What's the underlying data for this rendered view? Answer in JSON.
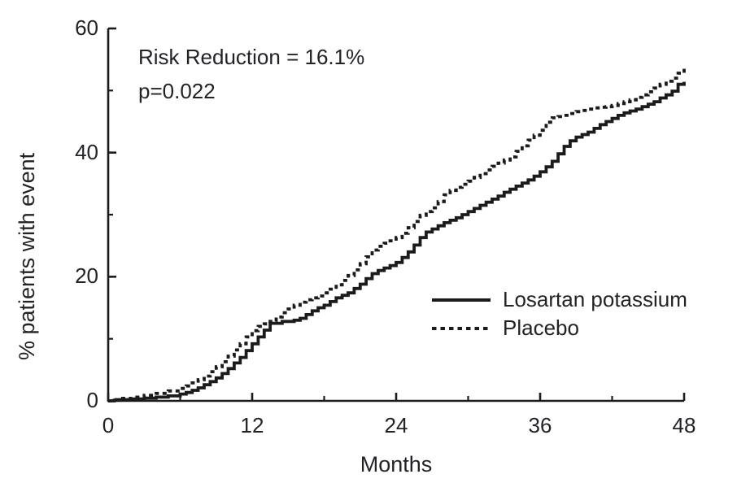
{
  "annotation": {
    "line1": "Risk Reduction = 16.1%",
    "line2": "p=0.022"
  },
  "axes": {
    "x": {
      "label": "Months",
      "major_ticks": [
        0,
        12,
        24,
        36,
        48
      ],
      "minor_ticks": [
        6,
        18,
        30,
        42
      ]
    },
    "y": {
      "label": "% patients with event",
      "major_ticks": [
        0,
        20,
        40,
        60
      ],
      "minor_ticks": [
        10,
        30,
        50
      ]
    }
  },
  "legend": {
    "items": [
      {
        "label": "Losartan potassium",
        "style": "solid"
      },
      {
        "label": "Placebo",
        "style": "dashed"
      }
    ]
  },
  "colors": {
    "line": "#1b1b1d",
    "text": "#232227",
    "background": "#ffffff"
  },
  "chart_data": {
    "type": "line",
    "subtype": "kaplan-meier-step",
    "title": "",
    "xlabel": "Months",
    "ylabel": "% patients with event",
    "xlim": [
      0,
      48
    ],
    "ylim": [
      0,
      60
    ],
    "grid": false,
    "legend_position": "lower-right-inside",
    "annotations": [
      "Risk Reduction = 16.1%",
      "p=0.022"
    ],
    "series": [
      {
        "name": "Losartan potassium",
        "style": "solid",
        "step": true,
        "points": [
          [
            0,
            0
          ],
          [
            0.5,
            0.1
          ],
          [
            1,
            0.2
          ],
          [
            2,
            0.3
          ],
          [
            3,
            0.45
          ],
          [
            4,
            0.6
          ],
          [
            5,
            0.8
          ],
          [
            6,
            1.1
          ],
          [
            6.5,
            1.35
          ],
          [
            7,
            1.7
          ],
          [
            7.5,
            2.1
          ],
          [
            8,
            2.6
          ],
          [
            8.5,
            3.1
          ],
          [
            9,
            3.7
          ],
          [
            9.5,
            4.4
          ],
          [
            10,
            5.2
          ],
          [
            10.5,
            6.1
          ],
          [
            11,
            7
          ],
          [
            11.5,
            8.1
          ],
          [
            12,
            9.2
          ],
          [
            12.5,
            10.3
          ],
          [
            13,
            11.4
          ],
          [
            13.5,
            12.5
          ],
          [
            14.5,
            12.8
          ],
          [
            15.5,
            13
          ],
          [
            16,
            13.3
          ],
          [
            16.5,
            13.9
          ],
          [
            17,
            14.5
          ],
          [
            17.5,
            15
          ],
          [
            18,
            15.4
          ],
          [
            18.5,
            16
          ],
          [
            19,
            16.6
          ],
          [
            19.5,
            17
          ],
          [
            20,
            17.4
          ],
          [
            20.5,
            18.1
          ],
          [
            21,
            18.8
          ],
          [
            21.5,
            19.7
          ],
          [
            22,
            20.5
          ],
          [
            22.5,
            21
          ],
          [
            23,
            21.4
          ],
          [
            23.5,
            21.8
          ],
          [
            24,
            22.3
          ],
          [
            24.5,
            23.1
          ],
          [
            25,
            24
          ],
          [
            25.5,
            25.1
          ],
          [
            26,
            26.3
          ],
          [
            26.5,
            27.2
          ],
          [
            27,
            27.7
          ],
          [
            27.5,
            28.2
          ],
          [
            28,
            28.7
          ],
          [
            28.5,
            29.1
          ],
          [
            29,
            29.5
          ],
          [
            29.5,
            30
          ],
          [
            30,
            30.5
          ],
          [
            30.5,
            31
          ],
          [
            31,
            31.5
          ],
          [
            31.5,
            32
          ],
          [
            32,
            32.5
          ],
          [
            32.5,
            33
          ],
          [
            33,
            33.6
          ],
          [
            33.5,
            34.1
          ],
          [
            34,
            34.6
          ],
          [
            34.5,
            35.1
          ],
          [
            35,
            35.6
          ],
          [
            35.5,
            36.2
          ],
          [
            36,
            36.9
          ],
          [
            36.5,
            37.7
          ],
          [
            37,
            38.6
          ],
          [
            37.5,
            39.8
          ],
          [
            38,
            41
          ],
          [
            38.5,
            41.9
          ],
          [
            39,
            42.5
          ],
          [
            39.5,
            42.9
          ],
          [
            40,
            43.3
          ],
          [
            40.5,
            43.9
          ],
          [
            41,
            44.5
          ],
          [
            41.5,
            45
          ],
          [
            42,
            45.5
          ],
          [
            42.5,
            46
          ],
          [
            43,
            46.4
          ],
          [
            43.5,
            46.7
          ],
          [
            44,
            47
          ],
          [
            44.5,
            47.4
          ],
          [
            45,
            47.8
          ],
          [
            45.5,
            48.2
          ],
          [
            46,
            48.8
          ],
          [
            46.5,
            49.3
          ],
          [
            47,
            49.9
          ],
          [
            47.5,
            51
          ],
          [
            48,
            51.4
          ]
        ]
      },
      {
        "name": "Placebo",
        "style": "dashed",
        "step": true,
        "points": [
          [
            0,
            0
          ],
          [
            0.5,
            0.2
          ],
          [
            1,
            0.4
          ],
          [
            2,
            0.6
          ],
          [
            3,
            0.9
          ],
          [
            4,
            1.2
          ],
          [
            5,
            1.6
          ],
          [
            6,
            2
          ],
          [
            6.5,
            2.4
          ],
          [
            7,
            2.9
          ],
          [
            7.5,
            3.4
          ],
          [
            8,
            4
          ],
          [
            8.5,
            4.7
          ],
          [
            9,
            5.5
          ],
          [
            9.5,
            6.3
          ],
          [
            10,
            7.2
          ],
          [
            10.5,
            8.2
          ],
          [
            11,
            9.2
          ],
          [
            11.5,
            10.3
          ],
          [
            12,
            11.3
          ],
          [
            12.5,
            12
          ],
          [
            13,
            12.4
          ],
          [
            13.5,
            12.8
          ],
          [
            14,
            13.5
          ],
          [
            14.5,
            14.2
          ],
          [
            15,
            14.8
          ],
          [
            15.5,
            15.4
          ],
          [
            16,
            15.9
          ],
          [
            16.5,
            16.3
          ],
          [
            17,
            16.6
          ],
          [
            17.5,
            16.9
          ],
          [
            18,
            17.4
          ],
          [
            18.5,
            18
          ],
          [
            19,
            18.7
          ],
          [
            19.5,
            19.4
          ],
          [
            20,
            20.2
          ],
          [
            20.5,
            21.1
          ],
          [
            21,
            22.1
          ],
          [
            21.5,
            23.2
          ],
          [
            22,
            24.3
          ],
          [
            22.5,
            24.9
          ],
          [
            23,
            25.4
          ],
          [
            23.5,
            25.8
          ],
          [
            24,
            26.3
          ],
          [
            24.5,
            27
          ],
          [
            25,
            27.9
          ],
          [
            25.5,
            28.9
          ],
          [
            26,
            29.9
          ],
          [
            26.5,
            30.5
          ],
          [
            27,
            31.1
          ],
          [
            27.5,
            32.1
          ],
          [
            28,
            33.2
          ],
          [
            28.5,
            33.9
          ],
          [
            29,
            34.4
          ],
          [
            29.5,
            34.9
          ],
          [
            30,
            35.4
          ],
          [
            30.5,
            36
          ],
          [
            31,
            36.6
          ],
          [
            31.5,
            37.2
          ],
          [
            32,
            37.8
          ],
          [
            32.5,
            38.3
          ],
          [
            33,
            38.8
          ],
          [
            33.5,
            39.3
          ],
          [
            34,
            40.2
          ],
          [
            34.5,
            41.1
          ],
          [
            35,
            42
          ],
          [
            35.5,
            42.8
          ],
          [
            36,
            43.6
          ],
          [
            36.5,
            44.9
          ],
          [
            37,
            45.6
          ],
          [
            37.5,
            45.8
          ],
          [
            38,
            46
          ],
          [
            38.5,
            46.3
          ],
          [
            39,
            46.6
          ],
          [
            39.5,
            46.8
          ],
          [
            40,
            47
          ],
          [
            40.5,
            47.2
          ],
          [
            41,
            47.3
          ],
          [
            41.5,
            47.4
          ],
          [
            42,
            47.6
          ],
          [
            42.5,
            47.9
          ],
          [
            43,
            48.2
          ],
          [
            43.5,
            48.5
          ],
          [
            44,
            48.9
          ],
          [
            44.5,
            49.3
          ],
          [
            45,
            49.8
          ],
          [
            45.5,
            50.4
          ],
          [
            46,
            51
          ],
          [
            46.5,
            51.5
          ],
          [
            47,
            52
          ],
          [
            47.5,
            52.8
          ],
          [
            48,
            53.5
          ]
        ]
      }
    ]
  }
}
